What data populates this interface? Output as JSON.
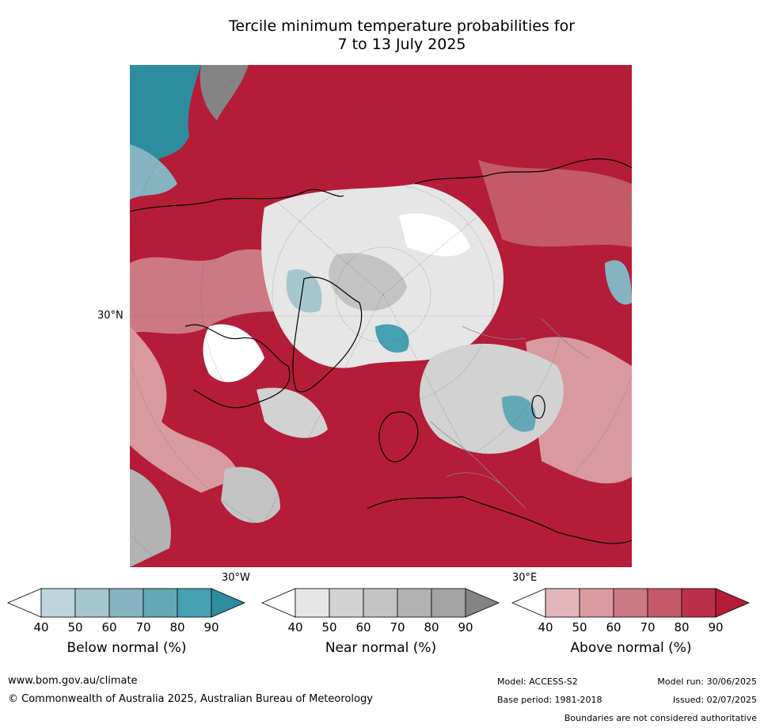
{
  "title": {
    "line1": "Tercile minimum temperature probabilities for",
    "line2": "7 to 13 July 2025"
  },
  "map": {
    "projection": "north polar stereographic",
    "lat_label": "30°N",
    "lon_labels": {
      "west": "30°W",
      "east": "30°E"
    }
  },
  "colorbars": [
    {
      "label": "Below normal (%)",
      "ticks": [
        "40",
        "50",
        "60",
        "70",
        "80",
        "90"
      ],
      "colors": [
        "#ffffff",
        "#bcd4da",
        "#a5c6cd",
        "#86b3c1",
        "#64a8b6",
        "#45a0b2",
        "#2d8d9e"
      ]
    },
    {
      "label": "Near normal (%)",
      "ticks": [
        "40",
        "50",
        "60",
        "70",
        "80",
        "90"
      ],
      "colors": [
        "#ffffff",
        "#e6e6e6",
        "#d2d2d2",
        "#c3c3c3",
        "#b3b3b3",
        "#a3a3a3",
        "#848484"
      ]
    },
    {
      "label": "Above normal (%)",
      "ticks": [
        "40",
        "50",
        "60",
        "70",
        "80",
        "90"
      ],
      "colors": [
        "#ffffff",
        "#e2b5bb",
        "#d8999f",
        "#cc7983",
        "#c45a68",
        "#ba3048",
        "#b41c38"
      ]
    }
  ],
  "footer": {
    "website": "www.bom.gov.au/climate",
    "copyright": "© Commonwealth of Australia 2025, Australian Bureau of Meteorology",
    "model": "Model: ACCESS-S2",
    "base_period": "Base period: 1981-2018",
    "model_run": "Model run: 30/06/2025",
    "issued": "Issued: 02/07/2025",
    "disclaimer": "Boundaries are not considered authoritative"
  }
}
